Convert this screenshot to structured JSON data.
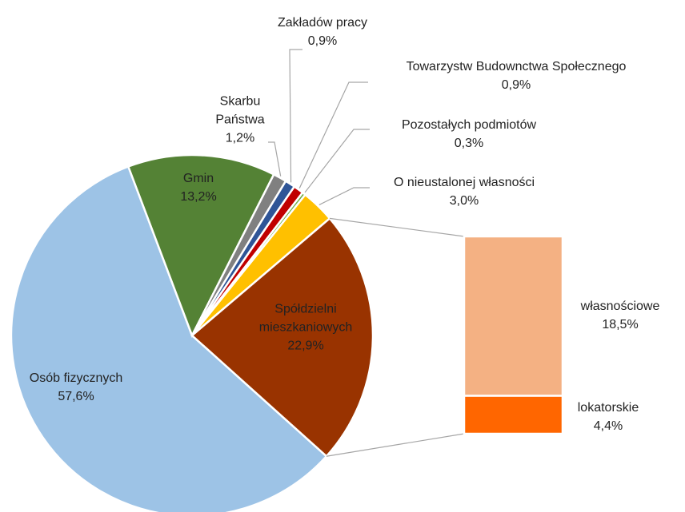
{
  "chart_data": {
    "type": "bar-of-pie",
    "categories": [
      "Osób fizycznych",
      "Gmin",
      "Skarbu Państwa",
      "Zakładów pracy",
      "Towarzystw Budownctwa Społecznego",
      "Pozostałych podmiotów",
      "O nieustalonej własności",
      "Spółdzielni mieszkaniowych"
    ],
    "values": [
      57.6,
      13.2,
      1.2,
      0.9,
      0.9,
      0.3,
      3.0,
      22.9
    ],
    "value_labels": [
      "57,6%",
      "13,2%",
      "1,2%",
      "0,9%",
      "0,9%",
      "0,3%",
      "3,0%",
      "22,9%"
    ],
    "colors": [
      "#9dc3e6",
      "#548235",
      "#808080",
      "#2f5597",
      "#c00000",
      "#70ad47",
      "#ffc000",
      "#993300"
    ],
    "breakdown": {
      "categories": [
        "własnościowe",
        "lokatorskie"
      ],
      "values": [
        18.5,
        4.4
      ],
      "value_labels": [
        "18,5%",
        "4,4%"
      ],
      "colors": [
        "#f4b183",
        "#ff6600"
      ]
    }
  }
}
